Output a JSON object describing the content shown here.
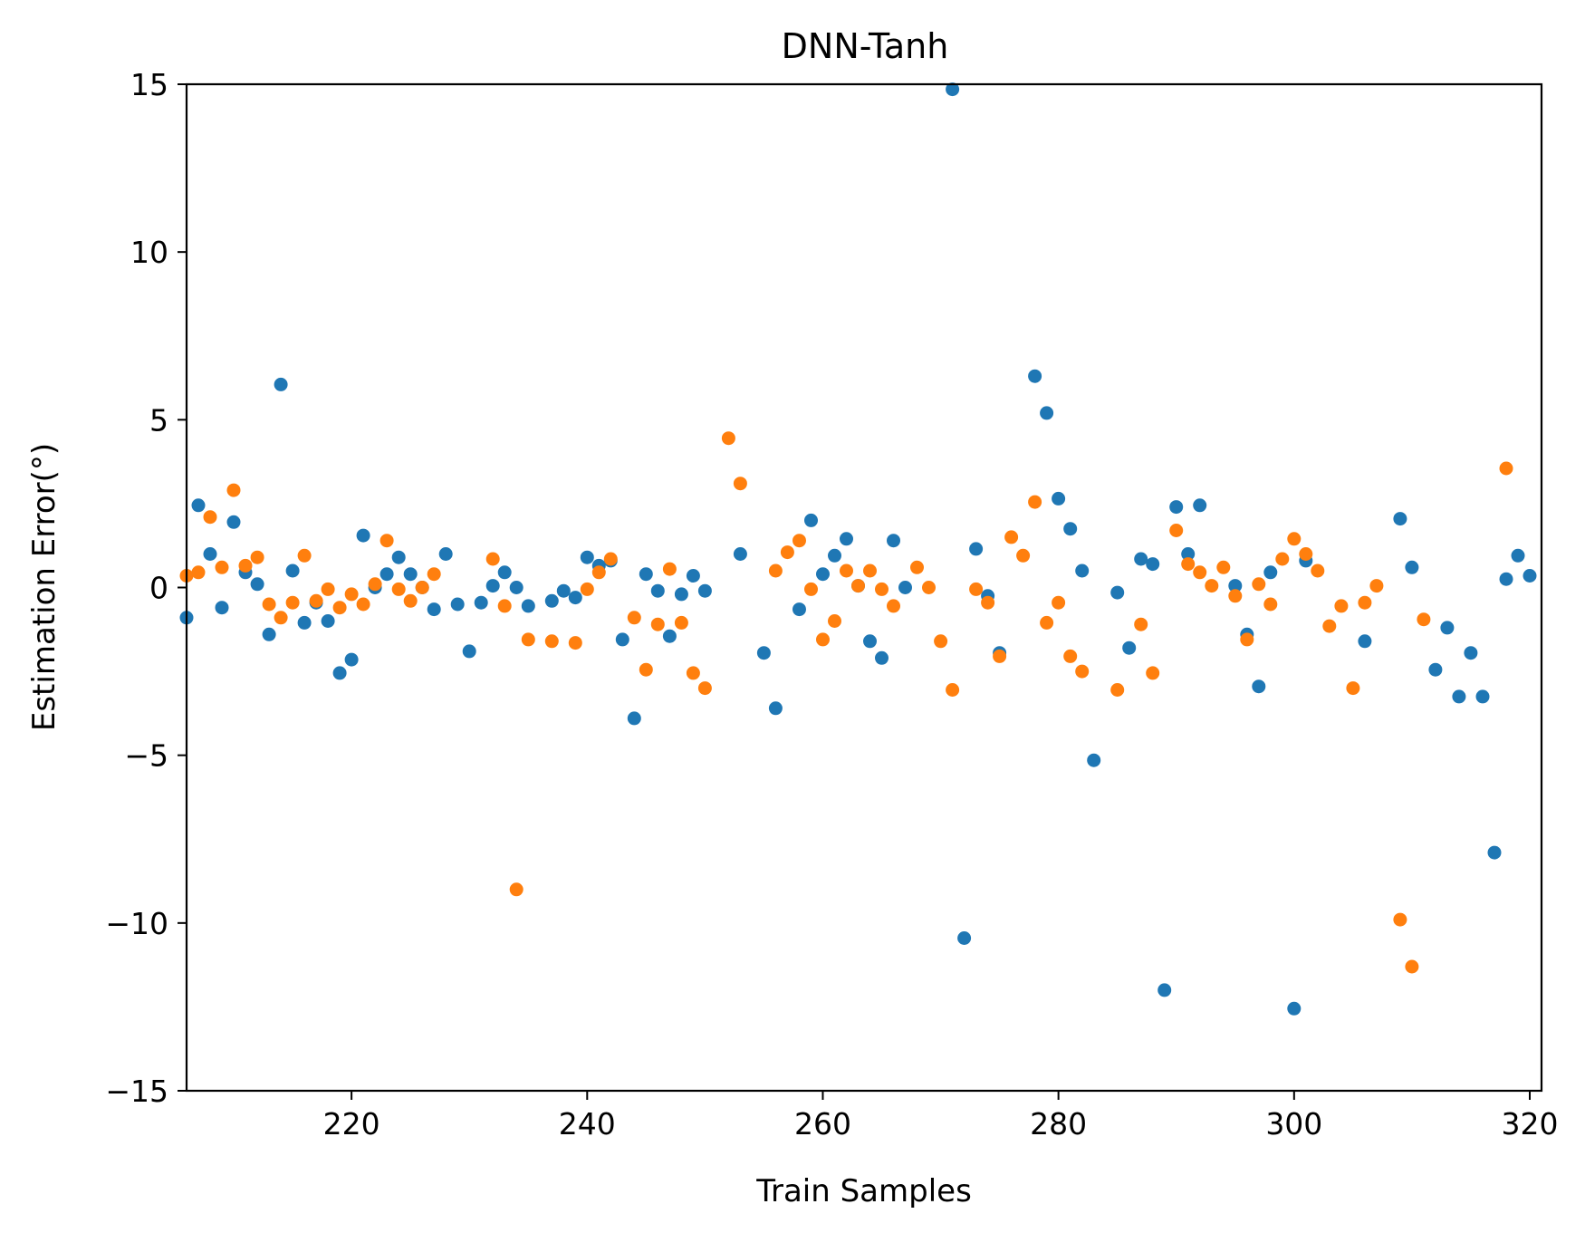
{
  "chart_data": {
    "type": "scatter",
    "title": "DNN-Tanh",
    "xlabel": "Train Samples",
    "ylabel": "Estimation Error(°)",
    "xlim": [
      206,
      321
    ],
    "ylim": [
      -15,
      15
    ],
    "x_ticks": [
      220,
      240,
      260,
      280,
      300,
      320
    ],
    "y_ticks": [
      -15,
      -10,
      -5,
      0,
      5,
      10,
      15
    ],
    "x_tick_labels": [
      "220",
      "240",
      "260",
      "280",
      "300",
      "320"
    ],
    "y_tick_labels": [
      "−15",
      "−10",
      "−5",
      "0",
      "5",
      "10",
      "15"
    ],
    "grid": false,
    "legend": "none",
    "series": [
      {
        "color": "#1f77b4",
        "points": [
          [
            206,
            -0.9
          ],
          [
            207,
            2.45
          ],
          [
            208,
            1.0
          ],
          [
            209,
            -0.6
          ],
          [
            210,
            1.95
          ],
          [
            211,
            0.45
          ],
          [
            212,
            0.1
          ],
          [
            213,
            -1.4
          ],
          [
            214,
            6.05
          ],
          [
            215,
            0.5
          ],
          [
            216,
            -1.05
          ],
          [
            217,
            -0.45
          ],
          [
            218,
            -1.0
          ],
          [
            219,
            -2.55
          ],
          [
            220,
            -2.15
          ],
          [
            221,
            1.55
          ],
          [
            222,
            0.0
          ],
          [
            223,
            0.4
          ],
          [
            224,
            0.9
          ],
          [
            225,
            0.4
          ],
          [
            226,
            0.0
          ],
          [
            227,
            -0.65
          ],
          [
            228,
            1.0
          ],
          [
            229,
            -0.5
          ],
          [
            230,
            -1.9
          ],
          [
            231,
            -0.45
          ],
          [
            232,
            0.05
          ],
          [
            233,
            0.45
          ],
          [
            234,
            0.0
          ],
          [
            235,
            -0.55
          ],
          [
            237,
            -0.4
          ],
          [
            238,
            -0.1
          ],
          [
            239,
            -0.3
          ],
          [
            240,
            0.9
          ],
          [
            241,
            0.65
          ],
          [
            242,
            0.8
          ],
          [
            243,
            -1.55
          ],
          [
            244,
            -3.9
          ],
          [
            245,
            0.4
          ],
          [
            246,
            -0.1
          ],
          [
            247,
            -1.45
          ],
          [
            248,
            -0.2
          ],
          [
            249,
            0.35
          ],
          [
            250,
            -0.1
          ],
          [
            253,
            1.0
          ],
          [
            255,
            -1.95
          ],
          [
            256,
            -3.6
          ],
          [
            258,
            -0.65
          ],
          [
            259,
            2.0
          ],
          [
            260,
            0.4
          ],
          [
            261,
            0.95
          ],
          [
            262,
            1.45
          ],
          [
            263,
            0.05
          ],
          [
            264,
            -1.6
          ],
          [
            265,
            -2.1
          ],
          [
            266,
            1.4
          ],
          [
            267,
            0.0
          ],
          [
            271,
            14.85
          ],
          [
            272,
            -10.45
          ],
          [
            273,
            1.15
          ],
          [
            274,
            -0.25
          ],
          [
            275,
            -1.95
          ],
          [
            278,
            6.3
          ],
          [
            279,
            5.2
          ],
          [
            280,
            2.65
          ],
          [
            281,
            1.75
          ],
          [
            282,
            0.5
          ],
          [
            283,
            -5.15
          ],
          [
            285,
            -0.15
          ],
          [
            286,
            -1.8
          ],
          [
            287,
            0.85
          ],
          [
            288,
            0.7
          ],
          [
            289,
            -12.0
          ],
          [
            290,
            2.4
          ],
          [
            291,
            1.0
          ],
          [
            292,
            2.45
          ],
          [
            295,
            0.05
          ],
          [
            296,
            -1.4
          ],
          [
            297,
            -2.95
          ],
          [
            298,
            0.45
          ],
          [
            300,
            -12.55
          ],
          [
            301,
            0.8
          ],
          [
            306,
            -1.6
          ],
          [
            309,
            2.05
          ],
          [
            310,
            0.6
          ],
          [
            312,
            -2.45
          ],
          [
            313,
            -1.2
          ],
          [
            314,
            -3.25
          ],
          [
            315,
            -1.95
          ],
          [
            316,
            -3.25
          ],
          [
            317,
            -7.9
          ],
          [
            318,
            0.25
          ],
          [
            319,
            0.95
          ],
          [
            320,
            0.35
          ]
        ]
      },
      {
        "color": "#ff7f0e",
        "points": [
          [
            206,
            0.35
          ],
          [
            207,
            0.45
          ],
          [
            208,
            2.1
          ],
          [
            209,
            0.6
          ],
          [
            210,
            2.9
          ],
          [
            211,
            0.65
          ],
          [
            212,
            0.9
          ],
          [
            213,
            -0.5
          ],
          [
            214,
            -0.9
          ],
          [
            215,
            -0.45
          ],
          [
            216,
            0.95
          ],
          [
            217,
            -0.4
          ],
          [
            218,
            -0.05
          ],
          [
            219,
            -0.6
          ],
          [
            220,
            -0.2
          ],
          [
            221,
            -0.5
          ],
          [
            222,
            0.1
          ],
          [
            223,
            1.4
          ],
          [
            224,
            -0.05
          ],
          [
            225,
            -0.4
          ],
          [
            226,
            0.0
          ],
          [
            227,
            0.4
          ],
          [
            232,
            0.85
          ],
          [
            233,
            -0.55
          ],
          [
            234,
            -9.0
          ],
          [
            235,
            -1.55
          ],
          [
            237,
            -1.6
          ],
          [
            239,
            -1.65
          ],
          [
            240,
            -0.05
          ],
          [
            241,
            0.45
          ],
          [
            242,
            0.85
          ],
          [
            244,
            -0.9
          ],
          [
            245,
            -2.45
          ],
          [
            246,
            -1.1
          ],
          [
            247,
            0.55
          ],
          [
            248,
            -1.05
          ],
          [
            249,
            -2.55
          ],
          [
            250,
            -3.0
          ],
          [
            252,
            4.45
          ],
          [
            253,
            3.1
          ],
          [
            256,
            0.5
          ],
          [
            257,
            1.05
          ],
          [
            258,
            1.4
          ],
          [
            259,
            -0.05
          ],
          [
            260,
            -1.55
          ],
          [
            261,
            -1.0
          ],
          [
            262,
            0.5
          ],
          [
            263,
            0.05
          ],
          [
            264,
            0.5
          ],
          [
            265,
            -0.05
          ],
          [
            266,
            -0.55
          ],
          [
            268,
            0.6
          ],
          [
            269,
            0.0
          ],
          [
            270,
            -1.6
          ],
          [
            271,
            -3.05
          ],
          [
            273,
            -0.05
          ],
          [
            274,
            -0.45
          ],
          [
            275,
            -2.05
          ],
          [
            276,
            1.5
          ],
          [
            277,
            0.95
          ],
          [
            278,
            2.55
          ],
          [
            279,
            -1.05
          ],
          [
            280,
            -0.45
          ],
          [
            281,
            -2.05
          ],
          [
            282,
            -2.5
          ],
          [
            285,
            -3.05
          ],
          [
            287,
            -1.1
          ],
          [
            288,
            -2.55
          ],
          [
            290,
            1.7
          ],
          [
            291,
            0.7
          ],
          [
            292,
            0.45
          ],
          [
            293,
            0.05
          ],
          [
            294,
            0.6
          ],
          [
            295,
            -0.25
          ],
          [
            296,
            -1.55
          ],
          [
            297,
            0.1
          ],
          [
            298,
            -0.5
          ],
          [
            299,
            0.85
          ],
          [
            300,
            1.45
          ],
          [
            301,
            1.0
          ],
          [
            302,
            0.5
          ],
          [
            303,
            -1.15
          ],
          [
            304,
            -0.55
          ],
          [
            305,
            -3.0
          ],
          [
            306,
            -0.45
          ],
          [
            307,
            0.05
          ],
          [
            309,
            -9.9
          ],
          [
            310,
            -11.3
          ],
          [
            311,
            -0.95
          ],
          [
            318,
            3.55
          ]
        ]
      }
    ]
  }
}
